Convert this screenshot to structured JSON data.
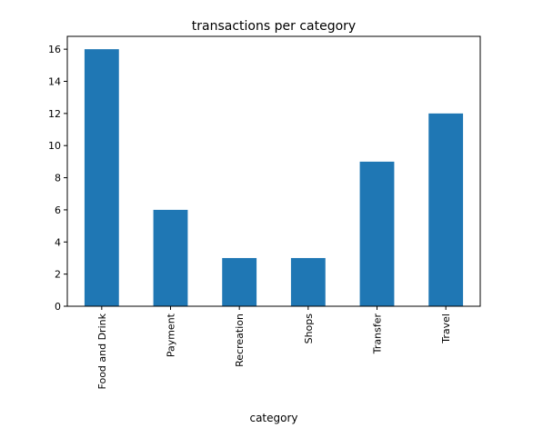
{
  "chart_data": {
    "type": "bar",
    "title": "transactions per category",
    "xlabel": "category",
    "ylabel": "",
    "categories": [
      "Food and Drink",
      "Payment",
      "Recreation",
      "Shops",
      "Transfer",
      "Travel"
    ],
    "values": [
      16,
      6,
      3,
      3,
      9,
      12
    ],
    "ylim": [
      0,
      16.8
    ],
    "yticks": [
      0,
      2,
      4,
      6,
      8,
      10,
      12,
      14,
      16
    ],
    "grid": false,
    "legend": "none",
    "bar_color": "#1f77b4"
  }
}
